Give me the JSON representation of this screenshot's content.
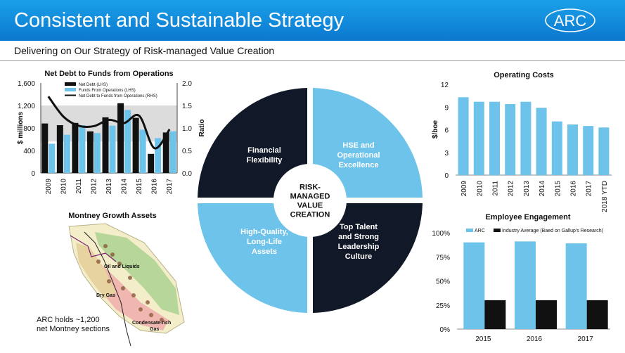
{
  "header": {
    "title": "Consistent and Sustainable Strategy",
    "logo_text": "ARC"
  },
  "subtitle": "Delivering on Our Strategy of Risk-managed Value Creation",
  "chart_data": [
    {
      "type": "bar",
      "title": "Net Debt to Funds from Operations",
      "ylabel": "$ millions",
      "y2label": "Ratio",
      "categories": [
        "2009",
        "2010",
        "2011",
        "2012",
        "2013",
        "2014",
        "2015",
        "2016",
        "2017"
      ],
      "ylim": [
        0,
        1600
      ],
      "yticks": [
        "0",
        "400",
        "800",
        "1,200",
        "1,600"
      ],
      "y2lim": [
        0,
        2.0
      ],
      "y2ticks": [
        "0.0",
        "0.5",
        "1.0",
        "1.5",
        "2.0"
      ],
      "series": [
        {
          "name": "Net Debt (LHS)",
          "type": "bar",
          "color": "#111111",
          "values": [
            880,
            850,
            890,
            740,
            990,
            1240,
            980,
            340,
            720
          ]
        },
        {
          "name": "Funds From Operations (LHS)",
          "type": "bar",
          "color": "#6ec3ea",
          "values": [
            520,
            680,
            850,
            710,
            840,
            1120,
            770,
            620,
            740
          ]
        },
        {
          "name": "Net Debt to Funds from Operations (RHS)",
          "type": "line",
          "color": "#111111",
          "values": [
            1.7,
            1.25,
            1.05,
            1.04,
            1.18,
            1.11,
            1.27,
            0.55,
            0.97
          ]
        }
      ],
      "band": [
        0.7,
        1.5
      ],
      "legend": "top-left"
    },
    {
      "type": "bar",
      "title": "Operating Costs",
      "ylabel": "$/boe",
      "categories": [
        "2009",
        "2010",
        "2011",
        "2012",
        "2013",
        "2014",
        "2015",
        "2016",
        "2017",
        "2018 YTD"
      ],
      "ylim": [
        0,
        12
      ],
      "yticks": [
        "0",
        "3",
        "6",
        "9",
        "12"
      ],
      "series": [
        {
          "color": "#6ec3ea",
          "values": [
            10.3,
            9.7,
            9.7,
            9.4,
            9.7,
            8.9,
            7.1,
            6.7,
            6.5,
            6.3
          ]
        }
      ]
    },
    {
      "type": "bar",
      "title": "Employee Engagement",
      "categories": [
        "2015",
        "2016",
        "2017"
      ],
      "ylim": [
        0,
        1
      ],
      "yticks": [
        "0%",
        "25%",
        "50%",
        "75%",
        "100%"
      ],
      "series": [
        {
          "name": "ARC",
          "color": "#6ec3ea",
          "values": [
            0.9,
            0.91,
            0.89
          ]
        },
        {
          "name": "Industry Average (Baed on Gallup's Research)",
          "color": "#111111",
          "values": [
            0.3,
            0.3,
            0.3
          ]
        }
      ],
      "legend": "top"
    }
  ],
  "wheel": {
    "center": [
      "RISK-",
      "MANAGED",
      "VALUE",
      "CREATION"
    ],
    "quadrants": [
      {
        "lines": [
          "Financial",
          "Flexibility"
        ],
        "color": "#111827"
      },
      {
        "lines": [
          "HSE and",
          "Operational",
          "Excellence"
        ],
        "color": "#6ec3ea"
      },
      {
        "lines": [
          "High-Quality,",
          "Long-Life",
          "Assets"
        ],
        "color": "#6ec3ea"
      },
      {
        "lines": [
          "Top Talent",
          "and Strong",
          "Leadership",
          "Culture"
        ],
        "color": "#111827"
      }
    ]
  },
  "map": {
    "title": "Montney Growth Assets",
    "labels": [
      "Oil and Liquids",
      "Dry Gas",
      "Condensate-rich",
      "Gas"
    ],
    "note_lines": [
      "ARC holds ~1,200",
      "net Montney sections"
    ]
  }
}
